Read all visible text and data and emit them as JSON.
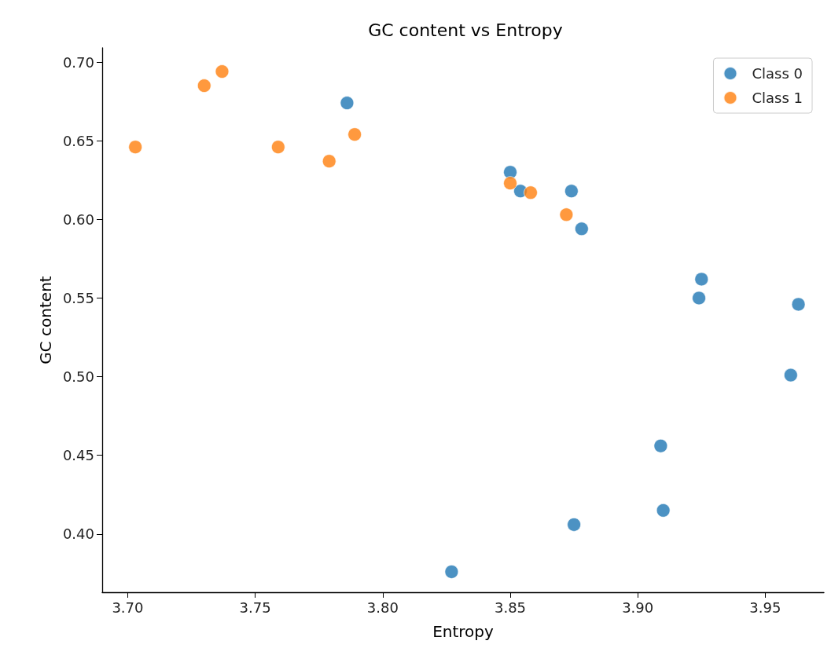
{
  "chart_data": {
    "type": "scatter",
    "title": "GC content vs Entropy",
    "xlabel": "Entropy",
    "ylabel": "GC content",
    "xlim": [
      3.69,
      3.973
    ],
    "xticks": [
      {
        "value": 3.7,
        "label": "3.70"
      },
      3.75,
      {
        "value": 3.8,
        "label": "3.80"
      },
      3.85,
      {
        "value": 3.9,
        "label": "3.90"
      },
      3.95
    ],
    "ylim": [
      0.363,
      0.709
    ],
    "yticks": [
      {
        "value": 0.4,
        "label": "0.40"
      },
      0.45,
      {
        "value": 0.5,
        "label": "0.50"
      },
      0.55,
      {
        "value": 0.6,
        "label": "0.60"
      },
      0.65,
      {
        "value": 0.7,
        "label": "0.70"
      }
    ],
    "grid": false,
    "legend": "top right",
    "marker": "circle",
    "series": [
      {
        "name": "Class 0",
        "color": "#1f77b4",
        "x": [
          3.786,
          3.85,
          3.854,
          3.874,
          3.878,
          3.925,
          3.924,
          3.963,
          3.96,
          3.909,
          3.91,
          3.875,
          3.827
        ],
        "values": [
          0.674,
          0.63,
          0.618,
          0.618,
          0.594,
          0.562,
          0.55,
          0.546,
          0.501,
          0.456,
          0.415,
          0.406,
          0.376
        ]
      },
      {
        "name": "Class 1",
        "color": "#ff7f0e",
        "x": [
          3.703,
          3.73,
          3.737,
          3.759,
          3.779,
          3.789,
          3.85,
          3.858,
          3.872
        ],
        "values": [
          0.646,
          0.685,
          0.694,
          0.646,
          0.637,
          0.654,
          0.623,
          0.617,
          0.603
        ]
      }
    ]
  }
}
